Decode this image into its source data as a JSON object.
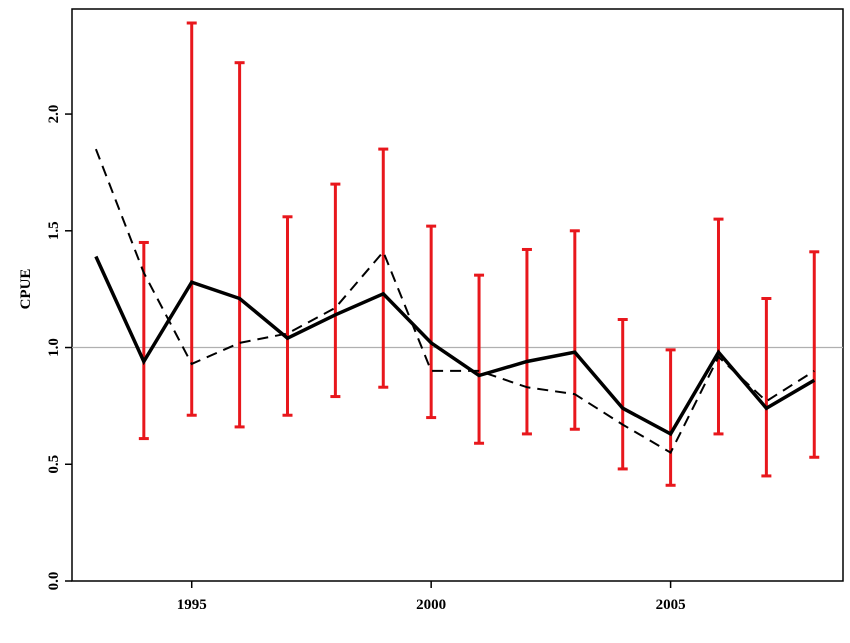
{
  "chart_data": {
    "type": "line",
    "title": "",
    "xlabel": "",
    "ylabel": "CPUE",
    "xlim": [
      1992.5,
      2008.6
    ],
    "ylim": [
      0.0,
      2.45
    ],
    "x_ticks": [
      1995,
      2000,
      2005
    ],
    "x_tick_labels": [
      "1995",
      "2000",
      "2005"
    ],
    "y_ticks": [
      0.0,
      0.5,
      1.0,
      1.5,
      2.0
    ],
    "y_tick_labels": [
      "0.0",
      "0.5",
      "1.0",
      "1.5",
      "2.0"
    ],
    "reference_line": {
      "y": 1.0,
      "color": "#b0b0b0"
    },
    "x": [
      1993,
      1994,
      1995,
      1996,
      1997,
      1998,
      1999,
      2000,
      2001,
      2002,
      2003,
      2004,
      2005,
      2006,
      2007,
      2008
    ],
    "series": [
      {
        "style": "solid",
        "color": "#000000",
        "values": [
          1.39,
          0.94,
          1.28,
          1.21,
          1.04,
          1.14,
          1.23,
          1.02,
          0.88,
          0.94,
          0.98,
          0.74,
          0.63,
          0.98,
          0.74,
          0.86
        ]
      },
      {
        "style": "dashed",
        "color": "#000000",
        "values": [
          1.85,
          1.32,
          0.93,
          1.02,
          1.06,
          1.17,
          1.41,
          0.9,
          0.9,
          0.83,
          0.8,
          0.67,
          0.55,
          0.96,
          0.77,
          0.9
        ]
      }
    ],
    "error_bars": {
      "color": "#e8171c",
      "x": [
        1994,
        1995,
        1996,
        1997,
        1998,
        1999,
        2000,
        2001,
        2002,
        2003,
        2004,
        2005,
        2006,
        2007,
        2008
      ],
      "lower": [
        0.61,
        0.71,
        0.66,
        0.71,
        0.79,
        0.83,
        0.7,
        0.59,
        0.63,
        0.65,
        0.48,
        0.41,
        0.63,
        0.45,
        0.53
      ],
      "upper": [
        1.45,
        2.39,
        2.22,
        1.56,
        1.7,
        1.85,
        1.52,
        1.31,
        1.42,
        1.5,
        1.12,
        0.99,
        1.55,
        1.21,
        1.41
      ]
    }
  }
}
